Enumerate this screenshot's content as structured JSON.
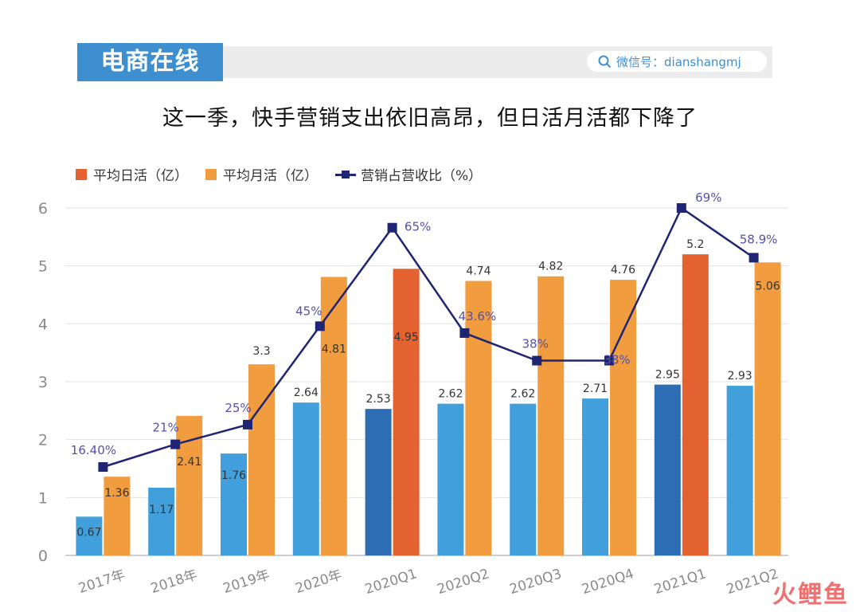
{
  "brand": {
    "name": "电商在线",
    "wechat": "微信号：dianshangmj",
    "watermark_logo": "火鲤鱼"
  },
  "title": "这一季，快手营销支出依旧高昂，但日活月活都下降了",
  "colors": {
    "dau": "#41a0dc",
    "dau_dark": "#2c6db3",
    "mau": "#f09c3f",
    "mau_dark": "#e3622f",
    "line": "#1f2573",
    "line_label": "#5552a6",
    "axis_text": "#8a8a8a",
    "grid": "#e2e2e2",
    "bar_label": "#333333"
  },
  "chart_data": {
    "type": "bar",
    "categories": [
      "2017年",
      "2018年",
      "2019年",
      "2020年",
      "2020Q1",
      "2020Q2",
      "2020Q3",
      "2020Q4",
      "2021Q1",
      "2021Q2"
    ],
    "ylim": [
      0,
      6
    ],
    "yticks": [
      "0",
      "1",
      "2",
      "3",
      "4",
      "5",
      "6"
    ],
    "grid": true,
    "legend_position": "top-left",
    "series": [
      {
        "name": "平均日活（亿）",
        "kind": "bar",
        "values": [
          0.67,
          1.17,
          1.76,
          2.64,
          2.53,
          2.62,
          2.62,
          2.71,
          2.95,
          2.93
        ],
        "labels": [
          "0.67",
          "1.17",
          "1.76",
          "2.64",
          "2.53",
          "2.62",
          "2.62",
          "2.71",
          "2.95",
          "2.93"
        ],
        "highlight": [
          4,
          8
        ]
      },
      {
        "name": "平均月活（亿）",
        "kind": "bar",
        "values": [
          1.36,
          2.41,
          3.3,
          4.81,
          4.95,
          4.74,
          4.82,
          4.76,
          5.2,
          5.06
        ],
        "labels": [
          "1.36",
          "2.41",
          "3.3",
          "4.81",
          "4.95",
          "4.74",
          "4.82",
          "4.76",
          "5.2",
          "5.06"
        ],
        "highlight": [
          4,
          8
        ]
      },
      {
        "name": "营销占营收比（%）",
        "kind": "line",
        "values": [
          16.4,
          21,
          25,
          45,
          65,
          43.6,
          38,
          38,
          69,
          58.9
        ],
        "labels": [
          "16.40%",
          "21%",
          "25%",
          "45%",
          "65%",
          "43.6%",
          "38%",
          "38%",
          "69%",
          "58.9%"
        ]
      }
    ]
  }
}
